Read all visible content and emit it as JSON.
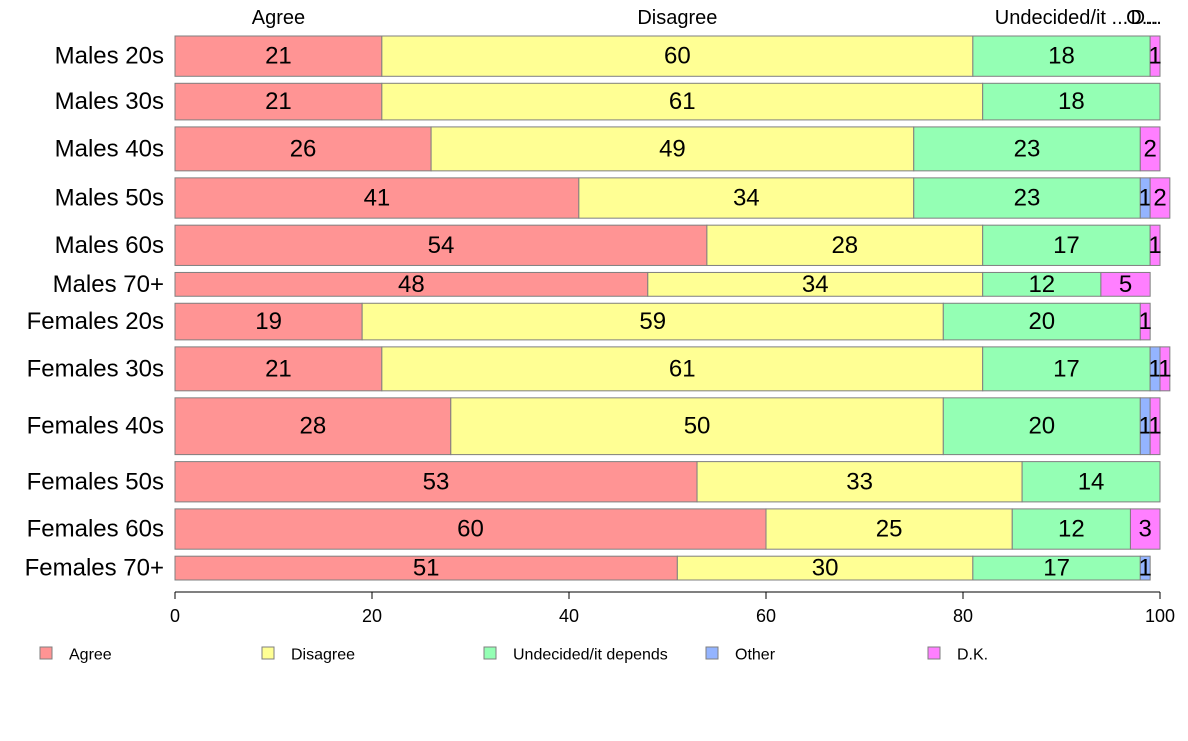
{
  "chart_data": {
    "type": "bar",
    "orientation": "horizontal",
    "stacked": true,
    "percent": true,
    "header_labels": [
      "Agree",
      "Disagree",
      "Undecided/it ...",
      "O...",
      "D..."
    ],
    "categories": [
      "Males 20s",
      "Males 30s",
      "Males 40s",
      "Males 50s",
      "Males 60s",
      "Males 70+",
      "Females 20s",
      "Females 30s",
      "Females 40s",
      "Females 50s",
      "Females 60s",
      "Females 70+"
    ],
    "series": [
      {
        "name": "Agree",
        "color": "#ff9494",
        "values": [
          21,
          21,
          26,
          41,
          54,
          48,
          19,
          21,
          28,
          53,
          60,
          51
        ]
      },
      {
        "name": "Disagree",
        "color": "#ffff94",
        "values": [
          60,
          61,
          49,
          34,
          28,
          34,
          59,
          61,
          50,
          33,
          25,
          30
        ]
      },
      {
        "name": "Undecided/it depends",
        "color": "#94ffb4",
        "values": [
          18,
          18,
          23,
          23,
          17,
          12,
          20,
          17,
          20,
          14,
          12,
          17
        ]
      },
      {
        "name": "Other",
        "color": "#94b4ff",
        "values": [
          0,
          0,
          0,
          1,
          0,
          0,
          0,
          1,
          1,
          0,
          0,
          1
        ]
      },
      {
        "name": "D.K.",
        "color": "#ff7fff",
        "values": [
          1,
          0,
          2,
          2,
          1,
          5,
          1,
          1,
          1,
          0,
          3,
          0
        ]
      }
    ],
    "row_weights": [
      1.1,
      1.0,
      1.2,
      1.1,
      1.1,
      0.65,
      1.0,
      1.2,
      1.55,
      1.1,
      1.1,
      0.65
    ],
    "xlim": [
      0,
      100
    ],
    "xticks": [
      0,
      20,
      40,
      60,
      80,
      100
    ],
    "legend_position": "bottom",
    "grid": false
  }
}
